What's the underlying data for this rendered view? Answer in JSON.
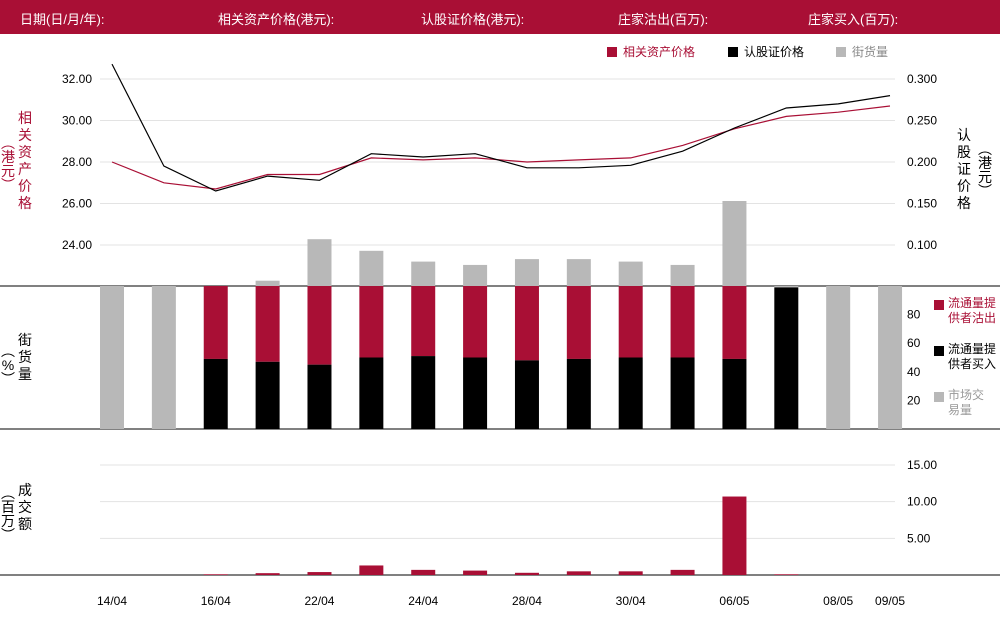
{
  "header": {
    "date_label": "日期(日/月/年):",
    "underlying_label": "相关资产价格(港元):",
    "warrant_label": "认股证价格(港元):",
    "mm_sell_label": "庄家沽出(百万):",
    "mm_buy_label": "庄家买入(百万):"
  },
  "legend": {
    "underlying": "相关资产价格",
    "warrant": "认股证价格",
    "outstanding": "街货量"
  },
  "axes": {
    "left_price_label": "相关资产价格",
    "left_price_unit": "港元",
    "right_price_label": "认股证价格",
    "right_price_unit": "港元",
    "pct_label": "街货量",
    "pct_unit": "%",
    "volume_label": "成交额",
    "volume_unit": "百万"
  },
  "side_legend": {
    "lp_sell": "流通量提供者沽出",
    "lp_buy": "流通量提供者买入",
    "market": "市场交易量"
  },
  "colors": {
    "crimson": "#a90f35",
    "black": "#000000",
    "gray": "#b8b8b8"
  },
  "chart_data": [
    {
      "type": "line",
      "x_ticks": [
        "14/04",
        "16/04",
        "22/04",
        "24/04",
        "28/04",
        "30/04",
        "06/05",
        "08/05",
        "09/05"
      ],
      "series": [
        {
          "name": "相关资产价格",
          "axis": "left",
          "values": [
            28.0,
            27.0,
            26.7,
            27.4,
            27.4,
            28.2,
            28.1,
            28.2,
            28.0,
            28.1,
            28.2,
            28.8,
            29.6,
            30.2,
            30.4,
            30.7
          ]
        },
        {
          "name": "认股证价格",
          "axis": "right",
          "values": [
            0.318,
            0.195,
            0.165,
            0.183,
            0.178,
            0.21,
            0.206,
            0.21,
            0.193,
            0.193,
            0.196,
            0.213,
            0.241,
            0.265,
            0.27,
            0.28
          ]
        },
        {
          "name": "街货量",
          "axis": "right",
          "type": "bar",
          "values": [
            null,
            null,
            null,
            0.057,
            0.107,
            0.093,
            0.08,
            0.076,
            0.083,
            0.083,
            0.08,
            0.076,
            0.153,
            0.045,
            0.045,
            null
          ]
        }
      ],
      "ylim_left": [
        22,
        33
      ],
      "yticks_left": [
        "32.00",
        "30.00",
        "28.00",
        "26.00",
        "24.00"
      ],
      "ylim_right": [
        0.05,
        0.31
      ],
      "yticks_right": [
        "0.300",
        "0.250",
        "0.200",
        "0.150",
        "0.100"
      ]
    },
    {
      "type": "bar",
      "stacked": true,
      "series": [
        {
          "name": "流通量提供者买入",
          "values": [
            0,
            0,
            49,
            47,
            45,
            50,
            51,
            50,
            48,
            49,
            50,
            50,
            49,
            99,
            0,
            0
          ]
        },
        {
          "name": "流通量提供者沽出",
          "values": [
            0,
            0,
            51,
            53,
            55,
            50,
            49,
            50,
            52,
            51,
            50,
            50,
            51,
            0,
            0,
            0
          ]
        },
        {
          "name": "市场交易量",
          "values": [
            100,
            100,
            0,
            0,
            0,
            0,
            0,
            0,
            0,
            0,
            0,
            0,
            0,
            1,
            100,
            100
          ]
        }
      ],
      "ylim": [
        0,
        100
      ],
      "yticks": [
        "80",
        "60",
        "40",
        "20"
      ]
    },
    {
      "type": "bar",
      "series": [
        {
          "name": "成交额",
          "values": [
            0,
            0,
            0.1,
            0.25,
            0.4,
            1.3,
            0.7,
            0.6,
            0.3,
            0.5,
            0.5,
            0.7,
            10.7,
            0.1,
            0,
            0
          ]
        }
      ],
      "ylim": [
        0,
        18.3
      ],
      "yticks": [
        "15.00",
        "10.00",
        "5.00"
      ]
    }
  ]
}
